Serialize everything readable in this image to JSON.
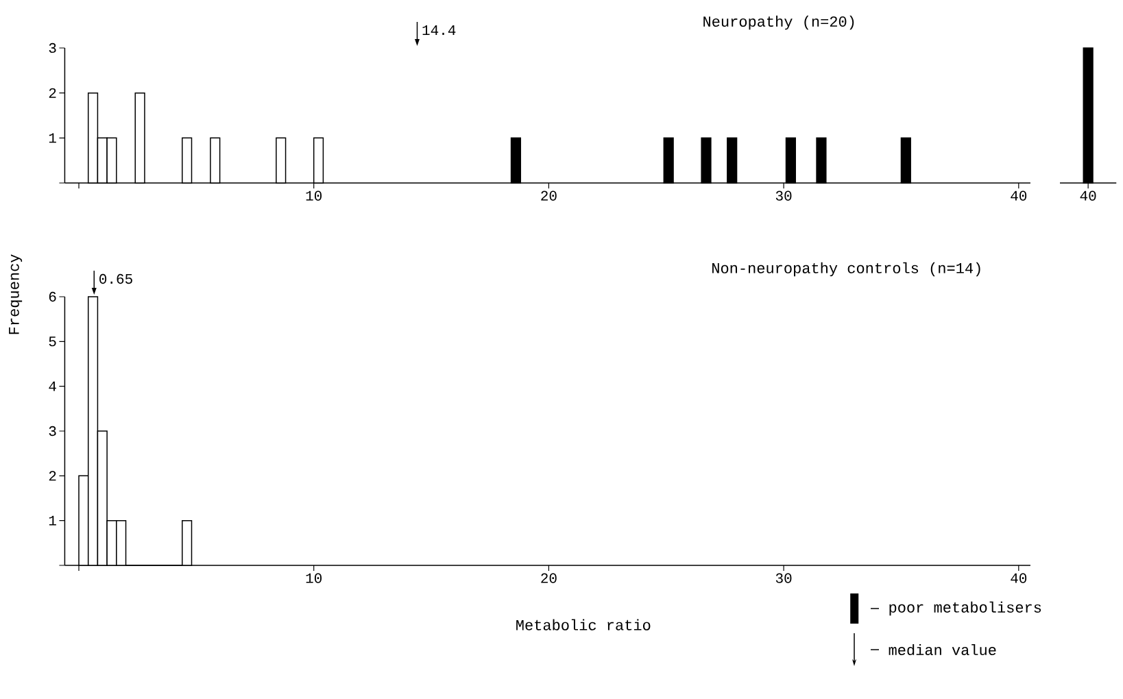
{
  "chart_data": [
    {
      "type": "bar",
      "title": "Neuropathy (n=20)",
      "xlim": [
        -0.6,
        40.5
      ],
      "xticks": [
        {
          "value": 0,
          "label": null
        },
        10,
        20,
        30,
        40
      ],
      "ylim": [
        0,
        3
      ],
      "yticks": [
        {
          "value": 0,
          "label": null
        },
        1,
        2,
        3
      ],
      "legend": "bottom right",
      "series": [
        {
          "color": "#ffffff",
          "x": [
            0.6,
            1.0,
            1.4,
            2.6,
            4.6,
            5.8,
            8.6,
            10.2
          ],
          "values": [
            2,
            1,
            1,
            2,
            1,
            1,
            1,
            1
          ]
        },
        {
          "name": "poor metabolisers",
          "color": "#000000",
          "x": [
            18.6,
            25.1,
            26.7,
            27.8,
            30.3,
            31.6,
            35.2
          ],
          "values": [
            1,
            1,
            1,
            1,
            1,
            1,
            1
          ]
        }
      ],
      "ref_lines": [
        {
          "axis": "x",
          "value": 14.4,
          "label": "14.4"
        }
      ]
    },
    {
      "type": "histogram",
      "title": "Non-neuropathy controls (n=14)",
      "xlabel": "Metabolic ratio",
      "ylabel": "Frequency",
      "xlim": [
        -0.6,
        40.5
      ],
      "xticks": [
        {
          "value": 0,
          "label": null
        },
        10,
        20,
        30,
        40
      ],
      "ylim": [
        0,
        6
      ],
      "yticks": [
        {
          "value": 0,
          "label": null
        },
        1,
        2,
        3,
        4,
        5,
        6
      ],
      "bins": [
        0,
        0.4,
        0.8,
        1.2,
        1.6,
        2.0,
        4.4,
        4.8
      ],
      "values": [
        2,
        6,
        3,
        1,
        1,
        0,
        1
      ],
      "color": "#ffffff",
      "ref_lines": [
        {
          "axis": "x",
          "value": 0.65,
          "label": "0.65"
        }
      ],
      "annotations": [
        "median value"
      ]
    },
    {
      "type": "bar",
      "categories": [
        "40"
      ],
      "values": [
        3
      ],
      "color": "#000000",
      "ylim": [
        0,
        3
      ],
      "tick_labels": "x"
    }
  ]
}
